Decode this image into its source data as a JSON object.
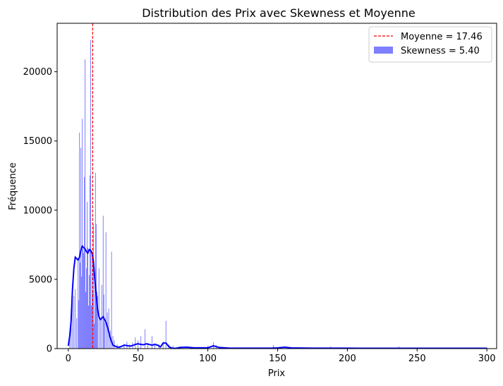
{
  "chart_data": {
    "type": "bar",
    "title": "Distribution des Prix avec Skewness et Moyenne",
    "xlabel": "Prix",
    "ylabel": "Fréquence",
    "xlim": [
      -8,
      307
    ],
    "ylim": [
      0,
      23500
    ],
    "xticks": [
      0,
      50,
      100,
      150,
      200,
      250,
      300
    ],
    "yticks": [
      0,
      5000,
      10000,
      15000,
      20000
    ],
    "grid": false,
    "legend_position": "top-right",
    "colors": {
      "hist": "#0000ff",
      "hist_alpha": 0.5,
      "kde": "#0000ff",
      "mean_line": "#ff0000"
    },
    "legend": [
      {
        "label": "Moyenne = 17.46",
        "style": "dashed-line",
        "color": "#ff0000"
      },
      {
        "label": "Skewness = 5.40",
        "style": "patch",
        "color": "#0000ff"
      }
    ],
    "mean": 17.46,
    "skewness": 5.4,
    "histogram": [
      {
        "x": 1,
        "y": 900
      },
      {
        "x": 2,
        "y": 2500
      },
      {
        "x": 3,
        "y": 3500
      },
      {
        "x": 4,
        "y": 3800
      },
      {
        "x": 5,
        "y": 4300
      },
      {
        "x": 6,
        "y": 2200
      },
      {
        "x": 7,
        "y": 6400
      },
      {
        "x": 7.5,
        "y": 3500
      },
      {
        "x": 8,
        "y": 15600
      },
      {
        "x": 8.5,
        "y": 6200
      },
      {
        "x": 9,
        "y": 14500
      },
      {
        "x": 9.5,
        "y": 5200
      },
      {
        "x": 10,
        "y": 16600
      },
      {
        "x": 10.5,
        "y": 7200
      },
      {
        "x": 11,
        "y": 6900
      },
      {
        "x": 11.5,
        "y": 12400
      },
      {
        "x": 12,
        "y": 20900
      },
      {
        "x": 12.5,
        "y": 4100
      },
      {
        "x": 13,
        "y": 5800
      },
      {
        "x": 13.5,
        "y": 10600
      },
      {
        "x": 14,
        "y": 7300
      },
      {
        "x": 14.5,
        "y": 3100
      },
      {
        "x": 15,
        "y": 5300
      },
      {
        "x": 15.5,
        "y": 12500
      },
      {
        "x": 16,
        "y": 22300
      },
      {
        "x": 16.5,
        "y": 3100
      },
      {
        "x": 17,
        "y": 7000
      },
      {
        "x": 17.5,
        "y": 4000
      },
      {
        "x": 18,
        "y": 9000
      },
      {
        "x": 18.5,
        "y": 1800
      },
      {
        "x": 19,
        "y": 5400
      },
      {
        "x": 19.5,
        "y": 12700
      },
      {
        "x": 20,
        "y": 9000
      },
      {
        "x": 20.5,
        "y": 4100
      },
      {
        "x": 21,
        "y": 3800
      },
      {
        "x": 22,
        "y": 5800
      },
      {
        "x": 23,
        "y": 2100
      },
      {
        "x": 24,
        "y": 4600
      },
      {
        "x": 25,
        "y": 9600
      },
      {
        "x": 25.5,
        "y": 3900
      },
      {
        "x": 26,
        "y": 1900
      },
      {
        "x": 27,
        "y": 8400
      },
      {
        "x": 28,
        "y": 2600
      },
      {
        "x": 29,
        "y": 2900
      },
      {
        "x": 30,
        "y": 1300
      },
      {
        "x": 31,
        "y": 7000
      },
      {
        "x": 32,
        "y": 900
      },
      {
        "x": 33,
        "y": 600
      },
      {
        "x": 35,
        "y": 300
      },
      {
        "x": 37,
        "y": 200
      },
      {
        "x": 40,
        "y": 350
      },
      {
        "x": 42,
        "y": 500
      },
      {
        "x": 44,
        "y": 300
      },
      {
        "x": 46,
        "y": 450
      },
      {
        "x": 48,
        "y": 800
      },
      {
        "x": 50,
        "y": 600
      },
      {
        "x": 52,
        "y": 900
      },
      {
        "x": 55,
        "y": 1400
      },
      {
        "x": 57,
        "y": 400
      },
      {
        "x": 60,
        "y": 900
      },
      {
        "x": 62,
        "y": 400
      },
      {
        "x": 65,
        "y": 300
      },
      {
        "x": 68,
        "y": 500
      },
      {
        "x": 70,
        "y": 2000
      },
      {
        "x": 72,
        "y": 300
      },
      {
        "x": 75,
        "y": 200
      },
      {
        "x": 80,
        "y": 150
      },
      {
        "x": 85,
        "y": 100
      },
      {
        "x": 90,
        "y": 100
      },
      {
        "x": 95,
        "y": 80
      },
      {
        "x": 100,
        "y": 200
      },
      {
        "x": 104,
        "y": 450
      },
      {
        "x": 106,
        "y": 250
      },
      {
        "x": 110,
        "y": 100
      },
      {
        "x": 120,
        "y": 80
      },
      {
        "x": 130,
        "y": 60
      },
      {
        "x": 140,
        "y": 50
      },
      {
        "x": 147,
        "y": 250
      },
      {
        "x": 150,
        "y": 80
      },
      {
        "x": 160,
        "y": 50
      },
      {
        "x": 170,
        "y": 40
      },
      {
        "x": 180,
        "y": 50
      },
      {
        "x": 188,
        "y": 150
      },
      {
        "x": 195,
        "y": 50
      },
      {
        "x": 200,
        "y": 80
      },
      {
        "x": 210,
        "y": 40
      },
      {
        "x": 220,
        "y": 40
      },
      {
        "x": 230,
        "y": 40
      },
      {
        "x": 237,
        "y": 150
      },
      {
        "x": 245,
        "y": 40
      },
      {
        "x": 255,
        "y": 40
      },
      {
        "x": 265,
        "y": 40
      },
      {
        "x": 275,
        "y": 40
      },
      {
        "x": 285,
        "y": 40
      },
      {
        "x": 295,
        "y": 40
      },
      {
        "x": 300,
        "y": 60
      }
    ],
    "kde": [
      {
        "x": 0,
        "y": 200
      },
      {
        "x": 1,
        "y": 900
      },
      {
        "x": 2,
        "y": 2000
      },
      {
        "x": 3,
        "y": 4300
      },
      {
        "x": 4,
        "y": 5800
      },
      {
        "x": 5,
        "y": 6600
      },
      {
        "x": 6,
        "y": 6500
      },
      {
        "x": 7,
        "y": 6400
      },
      {
        "x": 8,
        "y": 6600
      },
      {
        "x": 9,
        "y": 7100
      },
      {
        "x": 10,
        "y": 7400
      },
      {
        "x": 11,
        "y": 7300
      },
      {
        "x": 12,
        "y": 7200
      },
      {
        "x": 13,
        "y": 7000
      },
      {
        "x": 14,
        "y": 6900
      },
      {
        "x": 15,
        "y": 7150
      },
      {
        "x": 16,
        "y": 7100
      },
      {
        "x": 17,
        "y": 6900
      },
      {
        "x": 18,
        "y": 6300
      },
      {
        "x": 19,
        "y": 5000
      },
      {
        "x": 20,
        "y": 3900
      },
      {
        "x": 21,
        "y": 2800
      },
      {
        "x": 22,
        "y": 2300
      },
      {
        "x": 23,
        "y": 2100
      },
      {
        "x": 24,
        "y": 2200
      },
      {
        "x": 25,
        "y": 2300
      },
      {
        "x": 26,
        "y": 2100
      },
      {
        "x": 27,
        "y": 1900
      },
      {
        "x": 28,
        "y": 1600
      },
      {
        "x": 29,
        "y": 1200
      },
      {
        "x": 30,
        "y": 800
      },
      {
        "x": 31,
        "y": 500
      },
      {
        "x": 32,
        "y": 250
      },
      {
        "x": 34,
        "y": 150
      },
      {
        "x": 36,
        "y": 100
      },
      {
        "x": 38,
        "y": 150
      },
      {
        "x": 40,
        "y": 250
      },
      {
        "x": 42,
        "y": 220
      },
      {
        "x": 44,
        "y": 180
      },
      {
        "x": 46,
        "y": 220
      },
      {
        "x": 48,
        "y": 300
      },
      {
        "x": 50,
        "y": 350
      },
      {
        "x": 52,
        "y": 300
      },
      {
        "x": 54,
        "y": 280
      },
      {
        "x": 56,
        "y": 350
      },
      {
        "x": 58,
        "y": 300
      },
      {
        "x": 60,
        "y": 250
      },
      {
        "x": 62,
        "y": 300
      },
      {
        "x": 64,
        "y": 250
      },
      {
        "x": 66,
        "y": 120
      },
      {
        "x": 68,
        "y": 400
      },
      {
        "x": 70,
        "y": 400
      },
      {
        "x": 72,
        "y": 150
      },
      {
        "x": 74,
        "y": 40
      },
      {
        "x": 77,
        "y": 20
      },
      {
        "x": 80,
        "y": 80
      },
      {
        "x": 85,
        "y": 100
      },
      {
        "x": 90,
        "y": 60
      },
      {
        "x": 95,
        "y": 60
      },
      {
        "x": 100,
        "y": 60
      },
      {
        "x": 104,
        "y": 200
      },
      {
        "x": 108,
        "y": 80
      },
      {
        "x": 115,
        "y": 40
      },
      {
        "x": 125,
        "y": 30
      },
      {
        "x": 135,
        "y": 30
      },
      {
        "x": 145,
        "y": 30
      },
      {
        "x": 150,
        "y": 50
      },
      {
        "x": 155,
        "y": 100
      },
      {
        "x": 160,
        "y": 50
      },
      {
        "x": 175,
        "y": 30
      },
      {
        "x": 200,
        "y": 30
      },
      {
        "x": 225,
        "y": 25
      },
      {
        "x": 250,
        "y": 25
      },
      {
        "x": 275,
        "y": 25
      },
      {
        "x": 300,
        "y": 25
      }
    ]
  }
}
